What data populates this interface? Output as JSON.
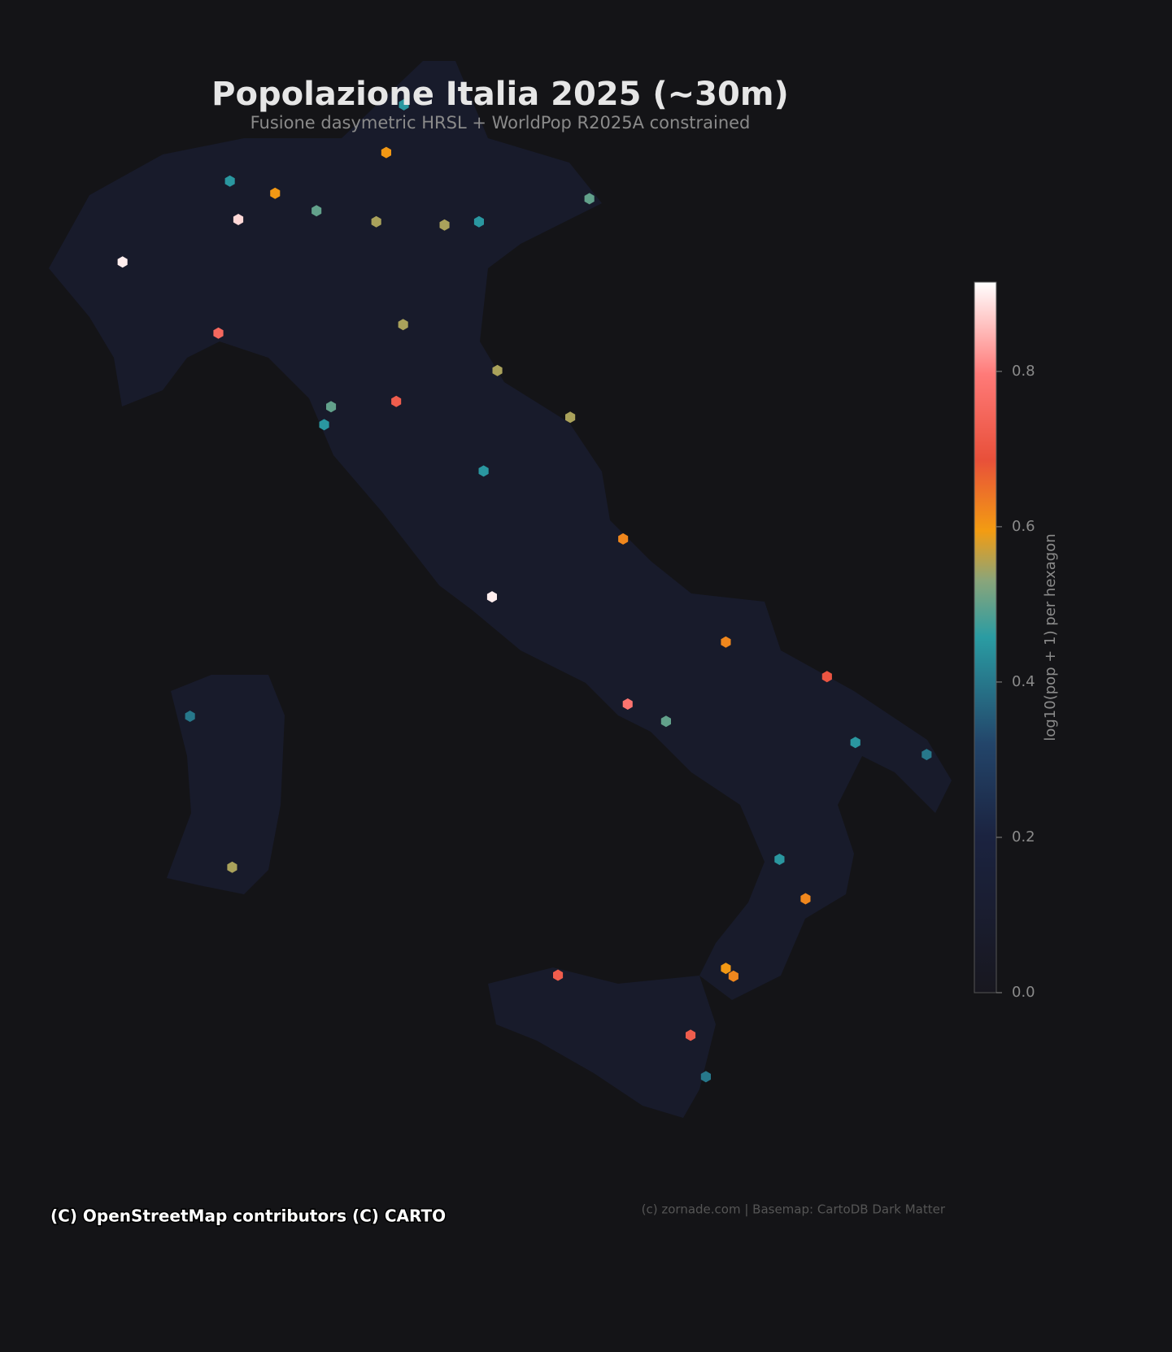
{
  "title": "Popolazione Italia 2025 (~30m)",
  "subtitle": "Fusione dasymetric HRSL + WorldPop R2025A constrained",
  "colorbar": {
    "label": "log10(pop + 1) per hexagon",
    "lim": [
      0,
      0.915
    ],
    "ticks": [
      {
        "value": 0,
        "label": "0.0"
      },
      0.2,
      0.4,
      0.6,
      0.8
    ]
  },
  "hotspots": [
    {
      "lon": 9.19,
      "lat": 45.46,
      "value": 0.88
    },
    {
      "lon": 7.68,
      "lat": 45.07,
      "value": 0.9
    },
    {
      "lon": 8.93,
      "lat": 44.41,
      "value": 0.75
    },
    {
      "lon": 12.5,
      "lat": 41.9,
      "value": 0.9
    },
    {
      "lon": 14.27,
      "lat": 40.85,
      "value": 0.78
    },
    {
      "lon": 13.36,
      "lat": 38.12,
      "value": 0.72
    },
    {
      "lon": 15.09,
      "lat": 37.5,
      "value": 0.72
    },
    {
      "lon": 16.87,
      "lat": 41.12,
      "value": 0.7
    },
    {
      "lon": 11.25,
      "lat": 43.77,
      "value": 0.72
    },
    {
      "lon": 11.34,
      "lat": 44.49,
      "value": 0.55
    },
    {
      "lon": 12.33,
      "lat": 45.44,
      "value": 0.45
    },
    {
      "lon": 10.99,
      "lat": 45.44,
      "value": 0.55
    },
    {
      "lon": 9.67,
      "lat": 45.7,
      "value": 0.6
    },
    {
      "lon": 10.21,
      "lat": 45.54,
      "value": 0.5
    },
    {
      "lon": 11.88,
      "lat": 45.41,
      "value": 0.55
    },
    {
      "lon": 13.77,
      "lat": 45.65,
      "value": 0.5
    },
    {
      "lon": 13.52,
      "lat": 43.62,
      "value": 0.55
    },
    {
      "lon": 14.21,
      "lat": 42.46,
      "value": 0.62
    },
    {
      "lon": 17.24,
      "lat": 40.47,
      "value": 0.45
    },
    {
      "lon": 15.65,
      "lat": 38.11,
      "value": 0.62
    },
    {
      "lon": 15.55,
      "lat": 38.19,
      "value": 0.6
    },
    {
      "lon": 9.11,
      "lat": 39.22,
      "value": 0.55
    },
    {
      "lon": 8.56,
      "lat": 40.73,
      "value": 0.4
    },
    {
      "lon": 16.59,
      "lat": 38.9,
      "value": 0.62
    },
    {
      "lon": 16.25,
      "lat": 39.3,
      "value": 0.45
    },
    {
      "lon": 18.17,
      "lat": 40.35,
      "value": 0.4
    },
    {
      "lon": 14.77,
      "lat": 40.68,
      "value": 0.5
    },
    {
      "lon": 15.55,
      "lat": 41.46,
      "value": 0.62
    },
    {
      "lon": 11.12,
      "lat": 46.07,
      "value": 0.6
    },
    {
      "lon": 11.35,
      "lat": 46.5,
      "value": 0.45
    },
    {
      "lon": 10.31,
      "lat": 43.55,
      "value": 0.45
    },
    {
      "lon": 10.4,
      "lat": 43.72,
      "value": 0.5
    },
    {
      "lon": 12.39,
      "lat": 43.11,
      "value": 0.45
    },
    {
      "lon": 12.57,
      "lat": 44.06,
      "value": 0.55
    },
    {
      "lon": 15.29,
      "lat": 37.07,
      "value": 0.4
    },
    {
      "lon": 9.08,
      "lat": 45.81,
      "value": 0.45
    }
  ],
  "attribution": {
    "tiles": "(C) OpenStreetMap contributors (C) CARTO",
    "credit": "(c) zornade.com | Basemap: CartoDB Dark Matter"
  }
}
